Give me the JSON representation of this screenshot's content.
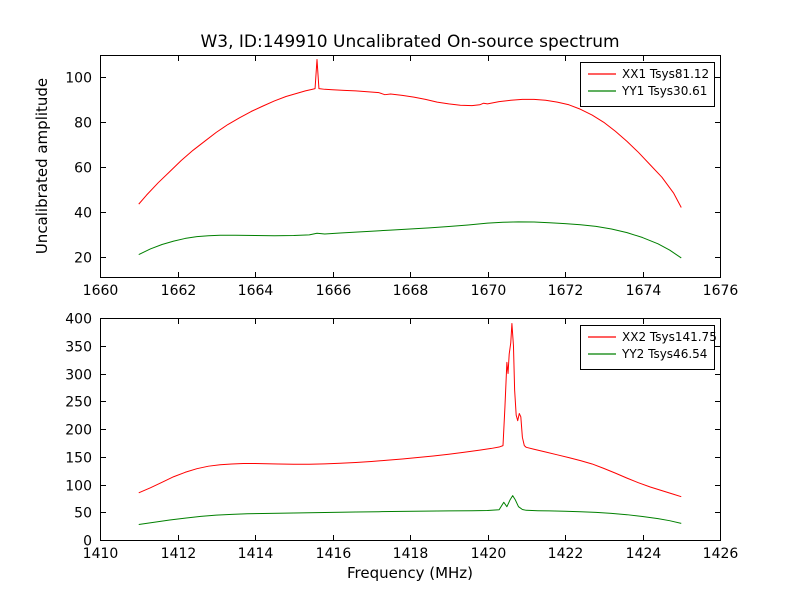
{
  "figure": {
    "background": "#ffffff",
    "frame_color": "#000000"
  },
  "chart_data": [
    {
      "type": "line",
      "title": "W3, ID:149910 Uncalibrated On-source spectrum",
      "xlabel": "",
      "ylabel": "Uncalibrated amplitude",
      "xlim": [
        1660,
        1676
      ],
      "ylim": [
        11,
        110
      ],
      "xticks": [
        1660,
        1662,
        1664,
        1666,
        1668,
        1670,
        1672,
        1674,
        1676
      ],
      "yticks": [
        20,
        40,
        60,
        80,
        100
      ],
      "grid": false,
      "legend_position": "upper right",
      "series": [
        {
          "name": "XX1 Tsys81.12",
          "color": "#ff0000",
          "points": [
            [
              1661.0,
              43.5
            ],
            [
              1661.2,
              47.5
            ],
            [
              1661.5,
              53
            ],
            [
              1661.8,
              58
            ],
            [
              1662.1,
              63
            ],
            [
              1662.4,
              67.5
            ],
            [
              1662.7,
              71.5
            ],
            [
              1663.0,
              75.5
            ],
            [
              1663.3,
              79
            ],
            [
              1663.6,
              82
            ],
            [
              1663.9,
              84.8
            ],
            [
              1664.2,
              87.2
            ],
            [
              1664.5,
              89.5
            ],
            [
              1664.8,
              91.5
            ],
            [
              1665.1,
              93
            ],
            [
              1665.3,
              94
            ],
            [
              1665.5,
              94.8
            ],
            [
              1665.55,
              95
            ],
            [
              1665.6,
              108
            ],
            [
              1665.65,
              95
            ],
            [
              1665.8,
              94.7
            ],
            [
              1666.0,
              94.5
            ],
            [
              1666.3,
              94.2
            ],
            [
              1666.6,
              94
            ],
            [
              1666.9,
              93.6
            ],
            [
              1667.2,
              93.2
            ],
            [
              1667.35,
              92.3
            ],
            [
              1667.5,
              92.6
            ],
            [
              1667.8,
              92
            ],
            [
              1668.1,
              91.2
            ],
            [
              1668.4,
              90.2
            ],
            [
              1668.7,
              89
            ],
            [
              1669.0,
              88.2
            ],
            [
              1669.3,
              87.6
            ],
            [
              1669.6,
              87.4
            ],
            [
              1669.8,
              87.8
            ],
            [
              1669.9,
              88.5
            ],
            [
              1670.0,
              88.2
            ],
            [
              1670.3,
              89.2
            ],
            [
              1670.6,
              89.8
            ],
            [
              1670.9,
              90.2
            ],
            [
              1671.2,
              90.2
            ],
            [
              1671.5,
              89.8
            ],
            [
              1671.8,
              89
            ],
            [
              1672.1,
              87.8
            ],
            [
              1672.4,
              85.8
            ],
            [
              1672.7,
              83.2
            ],
            [
              1673.0,
              80
            ],
            [
              1673.3,
              76
            ],
            [
              1673.6,
              71.5
            ],
            [
              1673.9,
              66.5
            ],
            [
              1674.2,
              61
            ],
            [
              1674.5,
              55.5
            ],
            [
              1674.8,
              48.5
            ],
            [
              1675.0,
              42
            ]
          ]
        },
        {
          "name": "YY1 Tsys30.61",
          "color": "#008000",
          "points": [
            [
              1661.0,
              21
            ],
            [
              1661.3,
              23.5
            ],
            [
              1661.6,
              25.5
            ],
            [
              1661.9,
              27
            ],
            [
              1662.2,
              28.2
            ],
            [
              1662.5,
              29
            ],
            [
              1662.8,
              29.4
            ],
            [
              1663.1,
              29.6
            ],
            [
              1663.5,
              29.6
            ],
            [
              1664.0,
              29.5
            ],
            [
              1664.5,
              29.4
            ],
            [
              1665.0,
              29.5
            ],
            [
              1665.4,
              29.8
            ],
            [
              1665.6,
              30.5
            ],
            [
              1665.8,
              30.2
            ],
            [
              1666.2,
              30.6
            ],
            [
              1666.6,
              31
            ],
            [
              1667.0,
              31.4
            ],
            [
              1667.5,
              31.9
            ],
            [
              1668.0,
              32.4
            ],
            [
              1668.5,
              32.9
            ],
            [
              1669.0,
              33.5
            ],
            [
              1669.5,
              34.2
            ],
            [
              1670.0,
              35
            ],
            [
              1670.4,
              35.4
            ],
            [
              1670.8,
              35.6
            ],
            [
              1671.2,
              35.5
            ],
            [
              1671.6,
              35.2
            ],
            [
              1672.0,
              34.8
            ],
            [
              1672.4,
              34.3
            ],
            [
              1672.8,
              33.6
            ],
            [
              1673.2,
              32.4
            ],
            [
              1673.6,
              30.8
            ],
            [
              1674.0,
              28.6
            ],
            [
              1674.4,
              25.8
            ],
            [
              1674.7,
              23
            ],
            [
              1675.0,
              19.5
            ]
          ]
        }
      ]
    },
    {
      "type": "line",
      "title": "",
      "xlabel": "Frequency (MHz)",
      "ylabel": "",
      "xlim": [
        1410,
        1426
      ],
      "ylim": [
        0,
        400
      ],
      "xticks": [
        1410,
        1412,
        1414,
        1416,
        1418,
        1420,
        1422,
        1424,
        1426
      ],
      "yticks": [
        0,
        50,
        100,
        150,
        200,
        250,
        300,
        350,
        400
      ],
      "grid": false,
      "legend_position": "upper right",
      "series": [
        {
          "name": "XX2 Tsys141.75",
          "color": "#ff0000",
          "points": [
            [
              1411.0,
              85
            ],
            [
              1411.3,
              94
            ],
            [
              1411.6,
              104
            ],
            [
              1411.9,
              114
            ],
            [
              1412.2,
              122
            ],
            [
              1412.5,
              128.5
            ],
            [
              1412.8,
              133
            ],
            [
              1413.1,
              135.5
            ],
            [
              1413.4,
              137
            ],
            [
              1413.7,
              137.8
            ],
            [
              1414.0,
              137.8
            ],
            [
              1414.3,
              137.4
            ],
            [
              1414.6,
              137
            ],
            [
              1415.0,
              136.6
            ],
            [
              1415.4,
              136.6
            ],
            [
              1415.8,
              137.2
            ],
            [
              1416.2,
              138.2
            ],
            [
              1416.6,
              139.6
            ],
            [
              1417.0,
              141.4
            ],
            [
              1417.4,
              143.6
            ],
            [
              1417.8,
              146
            ],
            [
              1418.2,
              148.6
            ],
            [
              1418.6,
              151.4
            ],
            [
              1419.0,
              154.6
            ],
            [
              1419.4,
              158.2
            ],
            [
              1419.8,
              162
            ],
            [
              1420.1,
              165
            ],
            [
              1420.3,
              167.5
            ],
            [
              1420.4,
              170
            ],
            [
              1420.45,
              240
            ],
            [
              1420.5,
              320
            ],
            [
              1420.53,
              300
            ],
            [
              1420.56,
              335
            ],
            [
              1420.6,
              355
            ],
            [
              1420.63,
              390
            ],
            [
              1420.67,
              350
            ],
            [
              1420.7,
              270
            ],
            [
              1420.74,
              225
            ],
            [
              1420.78,
              215
            ],
            [
              1420.82,
              228
            ],
            [
              1420.86,
              222
            ],
            [
              1420.9,
              185
            ],
            [
              1420.95,
              170
            ],
            [
              1421.0,
              167
            ],
            [
              1421.2,
              163.5
            ],
            [
              1421.5,
              158.5
            ],
            [
              1421.8,
              153.5
            ],
            [
              1422.1,
              148.5
            ],
            [
              1422.4,
              143
            ],
            [
              1422.7,
              137
            ],
            [
              1423.0,
              129
            ],
            [
              1423.3,
              120.5
            ],
            [
              1423.6,
              111.5
            ],
            [
              1423.9,
              103
            ],
            [
              1424.2,
              95.5
            ],
            [
              1424.5,
              89
            ],
            [
              1424.8,
              82.5
            ],
            [
              1425.0,
              78
            ]
          ]
        },
        {
          "name": "YY2 Tsys46.54",
          "color": "#008000",
          "points": [
            [
              1411.0,
              28
            ],
            [
              1411.4,
              32
            ],
            [
              1411.8,
              36
            ],
            [
              1412.2,
              39.5
            ],
            [
              1412.6,
              42.5
            ],
            [
              1413.0,
              44.8
            ],
            [
              1413.4,
              46.2
            ],
            [
              1413.8,
              47.2
            ],
            [
              1414.2,
              47.8
            ],
            [
              1414.8,
              48.4
            ],
            [
              1415.4,
              49
            ],
            [
              1416.0,
              49.8
            ],
            [
              1416.6,
              50.4
            ],
            [
              1417.2,
              51
            ],
            [
              1417.8,
              51.6
            ],
            [
              1418.4,
              52
            ],
            [
              1419.0,
              52.4
            ],
            [
              1419.6,
              52.8
            ],
            [
              1420.0,
              53.2
            ],
            [
              1420.3,
              54.5
            ],
            [
              1420.42,
              68
            ],
            [
              1420.5,
              60
            ],
            [
              1420.58,
              72
            ],
            [
              1420.65,
              80
            ],
            [
              1420.72,
              72
            ],
            [
              1420.8,
              60
            ],
            [
              1420.9,
              55
            ],
            [
              1421.0,
              53.5
            ],
            [
              1421.3,
              52.8
            ],
            [
              1421.6,
              52.4
            ],
            [
              1422.0,
              51.8
            ],
            [
              1422.4,
              51
            ],
            [
              1422.8,
              49.8
            ],
            [
              1423.2,
              48
            ],
            [
              1423.6,
              45.6
            ],
            [
              1424.0,
              42.4
            ],
            [
              1424.4,
              38.6
            ],
            [
              1424.7,
              34.8
            ],
            [
              1425.0,
              30
            ]
          ]
        }
      ]
    }
  ]
}
